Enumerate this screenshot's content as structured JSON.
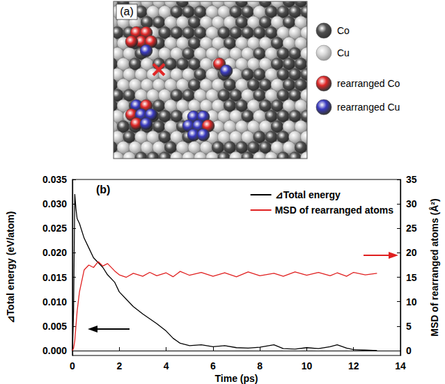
{
  "panel_a": {
    "label": "(a)",
    "legend": [
      {
        "label": "Co",
        "color": "#505050"
      },
      {
        "label": "Cu",
        "color": "#d8d8d8"
      },
      {
        "label": "rearranged Co",
        "color": "#e02828"
      },
      {
        "label": "rearranged Cu",
        "color": "#3a3ac0"
      }
    ]
  },
  "chart_data": {
    "type": "line",
    "annotations": [
      "(b)"
    ],
    "x_label": "Time (ps)",
    "y_label": "⊿Total energy (eV/atom)",
    "y2_label": "MSD of rearranged atoms (Å²)",
    "x": [
      0,
      0.05,
      0.1,
      0.15,
      0.2,
      0.3,
      0.5,
      0.7,
      0.9,
      1.1,
      1.3,
      1.5,
      1.8,
      2.0,
      2.3,
      2.6,
      3.0,
      3.3,
      3.6,
      4.0,
      4.3,
      4.6,
      5.0,
      5.5,
      6.0,
      6.5,
      7.0,
      7.5,
      8.0,
      8.6,
      9.0,
      9.5,
      10.0,
      10.5,
      11.0,
      11.3,
      11.7,
      12.0,
      12.5,
      13.0
    ],
    "series": [
      {
        "name": "⊿Total energy",
        "color": "#000000",
        "axis": "y",
        "values": [
          0,
          0.008,
          0.032,
          0.029,
          0.027,
          0.026,
          0.023,
          0.021,
          0.019,
          0.018,
          0.017,
          0.0155,
          0.014,
          0.012,
          0.0105,
          0.009,
          0.0075,
          0.0065,
          0.0055,
          0.004,
          0.0025,
          0.0015,
          0.001,
          0.0012,
          0.0008,
          0.001,
          0.0006,
          0.0005,
          0.0007,
          0.0012,
          0.0004,
          0.0003,
          0.0006,
          0.0004,
          0.0008,
          0.0012,
          0.0005,
          0.0002,
          0.0001,
          0
        ]
      },
      {
        "name": "MSD of rearranged atoms",
        "color": "#e02020",
        "axis": "y2",
        "values": [
          0,
          0.5,
          2,
          5,
          8,
          12,
          16.5,
          17.5,
          17,
          18.2,
          17.3,
          17.8,
          16.3,
          15.5,
          15,
          15.8,
          15.2,
          16,
          15.3,
          15.9,
          15.1,
          16.2,
          15.4,
          16,
          15.2,
          15.9,
          15.1,
          16.1,
          15.3,
          15.8,
          15.2,
          16.1,
          15.4,
          16,
          15.3,
          15.9,
          15.2,
          16,
          15.5,
          15.8
        ]
      }
    ],
    "xlim": [
      0,
      14
    ],
    "xticks": [
      0,
      2,
      4,
      6,
      8,
      10,
      12,
      14
    ],
    "ylim": [
      -0.001,
      0.035
    ],
    "yticks": [
      {
        "value": 0,
        "label": "0.000"
      },
      {
        "value": 0.005,
        "label": "0.005"
      },
      {
        "value": 0.01,
        "label": "0.010"
      },
      {
        "value": 0.015,
        "label": "0.015"
      },
      {
        "value": 0.02,
        "label": "0.020"
      },
      {
        "value": 0.025,
        "label": "0.025"
      },
      {
        "value": 0.03,
        "label": "0.030"
      },
      {
        "value": 0.035,
        "label": "0.035"
      }
    ],
    "y2lim": [
      -1,
      35
    ],
    "y2ticks": [
      0,
      5,
      10,
      15,
      20,
      25,
      30,
      35
    ],
    "grid": false,
    "legend": "upper right",
    "marker": "none",
    "line_style": "solid"
  }
}
